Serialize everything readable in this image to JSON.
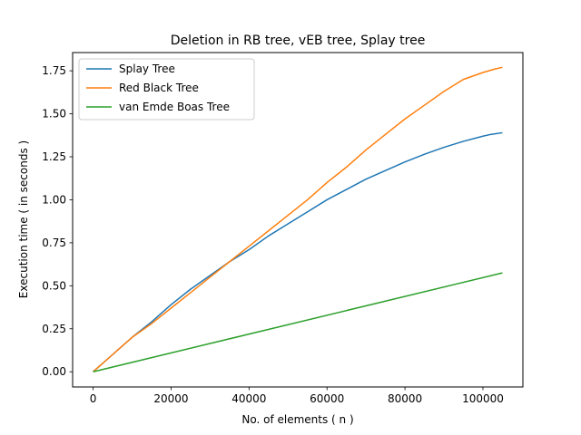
{
  "chart_data": {
    "type": "line",
    "title": "Deletion in RB tree, vEB tree, Splay tree",
    "xlabel": "No. of elements ( n )",
    "ylabel": "Execution time ( in seconds )",
    "xlim": [
      -5250,
      110250
    ],
    "ylim": [
      -0.0884,
      1.856
    ],
    "xticks": [
      0,
      20000,
      40000,
      60000,
      80000,
      100000
    ],
    "yticks": [
      0.0,
      0.25,
      0.5,
      0.75,
      1.0,
      1.25,
      1.5,
      1.75
    ],
    "grid": false,
    "legend_position": "top-left",
    "series": [
      {
        "name": "Splay Tree",
        "color": "#1f77b4",
        "x": [
          0,
          2000,
          5000,
          10000,
          15000,
          20000,
          25000,
          30000,
          35000,
          40000,
          45000,
          50000,
          55000,
          60000,
          65000,
          70000,
          75000,
          80000,
          85000,
          90000,
          95000,
          100000,
          102000,
          105000
        ],
        "y": [
          0.0,
          0.04,
          0.1,
          0.2,
          0.29,
          0.39,
          0.48,
          0.56,
          0.64,
          0.71,
          0.79,
          0.86,
          0.93,
          1.0,
          1.06,
          1.12,
          1.17,
          1.22,
          1.265,
          1.305,
          1.34,
          1.37,
          1.38,
          1.39
        ]
      },
      {
        "name": "Red Black Tree",
        "color": "#ff7f0e",
        "x": [
          0,
          2000,
          5000,
          10000,
          15000,
          20000,
          25000,
          30000,
          35000,
          40000,
          45000,
          50000,
          55000,
          60000,
          65000,
          70000,
          75000,
          80000,
          85000,
          90000,
          95000,
          100000,
          103000,
          105000
        ],
        "y": [
          0.0,
          0.04,
          0.1,
          0.2,
          0.28,
          0.37,
          0.46,
          0.55,
          0.64,
          0.73,
          0.82,
          0.91,
          1.0,
          1.1,
          1.19,
          1.29,
          1.38,
          1.47,
          1.55,
          1.63,
          1.7,
          1.74,
          1.76,
          1.77
        ]
      },
      {
        "name": "van Emde Boas Tree",
        "color": "#2ca02c",
        "x": [
          0,
          105000
        ],
        "y": [
          0.0,
          0.575
        ]
      }
    ]
  }
}
